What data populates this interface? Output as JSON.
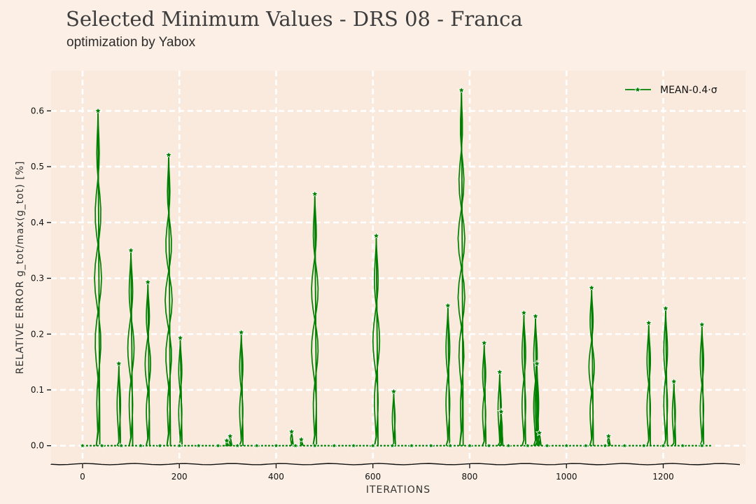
{
  "chart_data": {
    "type": "line",
    "title": "Selected Minimum Values - DRS 08 - Franca",
    "subtitle": "optimization by Yabox",
    "xlabel": "ITERATIONS",
    "ylabel": "RELATIVE ERROR g_tot/max(g_tot) [%]",
    "xlim": [
      -65,
      1370
    ],
    "ylim": [
      -0.033,
      0.672
    ],
    "xticks": [
      0,
      200,
      400,
      600,
      800,
      1000,
      1200
    ],
    "xtick_labels": [
      "0",
      "200",
      "400",
      "600",
      "800",
      "1000",
      "1200"
    ],
    "yticks": [
      0.0,
      0.1,
      0.2,
      0.3,
      0.4,
      0.5,
      0.6
    ],
    "ytick_labels": [
      "0.0",
      "0.1",
      "0.2",
      "0.3",
      "0.4",
      "0.5",
      "0.6"
    ],
    "grid": true,
    "legend_position": "top-right",
    "series": [
      {
        "name": "MEAN-0.4·σ",
        "color": "#008000",
        "marker": "star",
        "peaks": [
          [
            32,
            0.6
          ],
          [
            75,
            0.147
          ],
          [
            100,
            0.35
          ],
          [
            135,
            0.293
          ],
          [
            178,
            0.521
          ],
          [
            202,
            0.193
          ],
          [
            298,
            0.009
          ],
          [
            305,
            0.017
          ],
          [
            328,
            0.203
          ],
          [
            432,
            0.025
          ],
          [
            452,
            0.011
          ],
          [
            480,
            0.451
          ],
          [
            607,
            0.376
          ],
          [
            643,
            0.097
          ],
          [
            755,
            0.251
          ],
          [
            783,
            0.637
          ],
          [
            830,
            0.184
          ],
          [
            862,
            0.132
          ],
          [
            865,
            0.061
          ],
          [
            912,
            0.238
          ],
          [
            936,
            0.232
          ],
          [
            939,
            0.147
          ],
          [
            944,
            0.023
          ],
          [
            1052,
            0.283
          ],
          [
            1087,
            0.017
          ],
          [
            1170,
            0.22
          ],
          [
            1205,
            0.246
          ],
          [
            1222,
            0.115
          ],
          [
            1280,
            0.217
          ]
        ],
        "baseline_value": 0.0,
        "x_range": [
          0,
          1300
        ]
      }
    ]
  }
}
